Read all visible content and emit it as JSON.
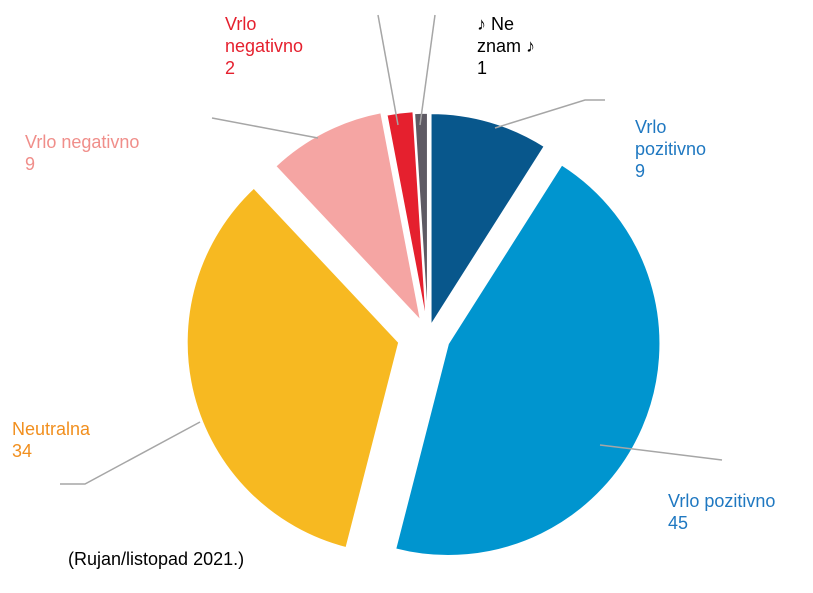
{
  "chart_data": {
    "type": "pie",
    "categories": [
      "Vrlo pozitivno",
      "Vrlo pozitivno",
      "Neutralna",
      "Vrlo negativno",
      "Vrlo negativno",
      "♪ Ne znam ♪"
    ],
    "values": [
      9,
      45,
      34,
      9,
      2,
      1
    ],
    "colors": [
      "#08578c",
      "#0095cf",
      "#f7b921",
      "#f5a5a3",
      "#e5202e",
      "#5e5a63"
    ],
    "label_colors": [
      "#1f78c1",
      "#1f78c1",
      "#f18f1e",
      "#f08e8a",
      "#e5202e",
      "#000000"
    ],
    "note": "(Rujan/listopad 2021.)"
  }
}
